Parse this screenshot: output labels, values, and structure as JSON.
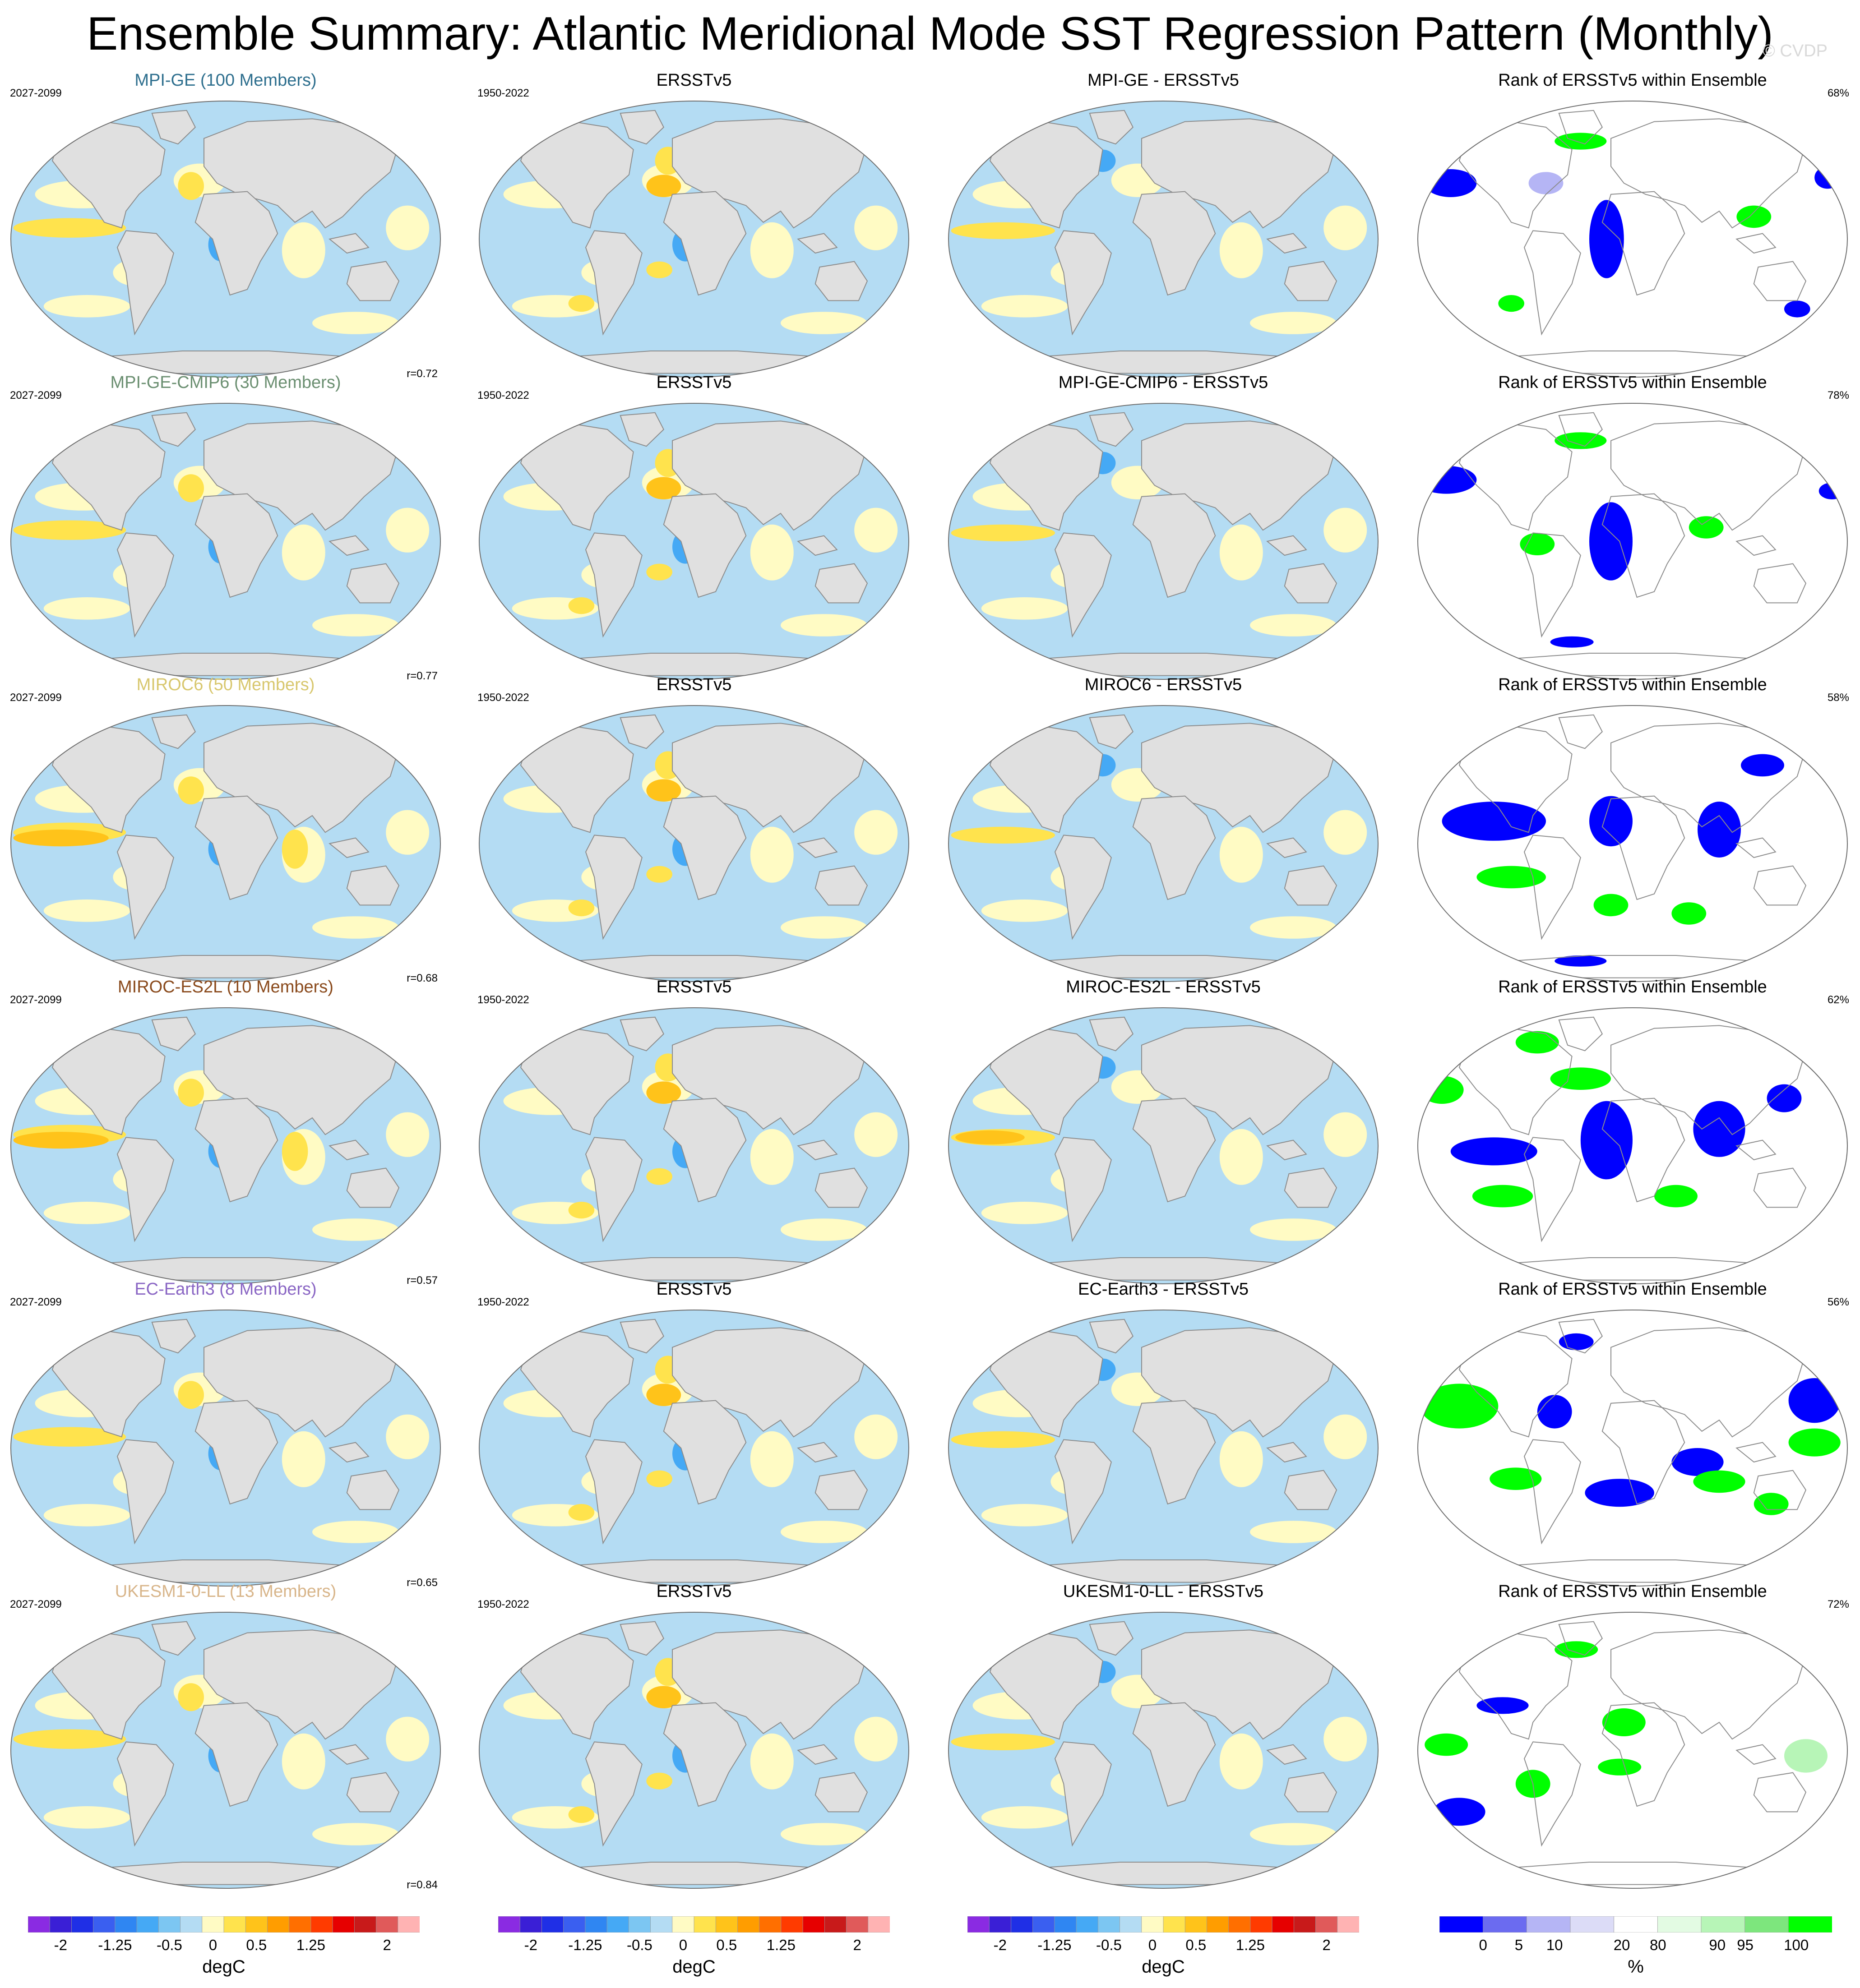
{
  "title": "Ensemble Summary: Atlantic Meridional Mode SST Regression Pattern (Monthly)",
  "watermark": "© CVDP",
  "column_titles": {
    "obs": "ERSSTv5",
    "rank": "Rank of ERSSTv5 within Ensemble"
  },
  "periods": {
    "model": "2027-2099",
    "obs": "1950-2022"
  },
  "rows": [
    {
      "model_label": "MPI-GE (100 Members)",
      "label_color": "#2e6f8e",
      "diff_title": "MPI-GE - ERSSTv5",
      "r": "r=0.72",
      "rank_pct": "68%"
    },
    {
      "model_label": "MPI-GE-CMIP6 (30 Members)",
      "label_color": "#6b8f71",
      "diff_title": "MPI-GE-CMIP6 - ERSSTv5",
      "r": "r=0.77",
      "rank_pct": "78%"
    },
    {
      "model_label": "MIROC6 (50 Members)",
      "label_color": "#d8c76e",
      "diff_title": "MIROC6 - ERSSTv5",
      "r": "r=0.68",
      "rank_pct": "58%"
    },
    {
      "model_label": "MIROC-ES2L (10 Members)",
      "label_color": "#8a4a1c",
      "diff_title": "MIROC-ES2L - ERSSTv5",
      "r": "r=0.57",
      "rank_pct": "62%"
    },
    {
      "model_label": "EC-Earth3 (8 Members)",
      "label_color": "#8a66c4",
      "diff_title": "EC-Earth3 - ERSSTv5",
      "r": "r=0.65",
      "rank_pct": "56%"
    },
    {
      "model_label": "UKESM1-0-LL (13 Members)",
      "label_color": "#d8b58a",
      "diff_title": "UKESM1-0-LL - ERSSTv5",
      "r": "r=0.84",
      "rank_pct": "72%"
    }
  ],
  "sst_colorbar": {
    "labels": [
      "-2",
      "-1.25",
      "-0.5",
      "0",
      "0.5",
      "1.25",
      "2"
    ],
    "unit": "degC",
    "colors": [
      "#8a2be2",
      "#3a1fd6",
      "#1f2fe6",
      "#3a5ff0",
      "#2f86f2",
      "#45a9f5",
      "#7cc6f2",
      "#b4dcf3",
      "#fffbc4",
      "#ffe34d",
      "#ffc31a",
      "#ff9d00",
      "#ff6f00",
      "#ff3b00",
      "#e60000",
      "#c81a1a",
      "#e05a5a",
      "#ffb3b3"
    ]
  },
  "rank_colorbar": {
    "labels": [
      "0",
      "5",
      "10",
      "20",
      "80",
      "90",
      "95",
      "100"
    ],
    "unit": "%",
    "colors": [
      "#0000ff",
      "#6b6bf0",
      "#b5b5f5",
      "#dcdcf7",
      "#ffffff",
      "#e3fbe3",
      "#b7f5b7",
      "#7de67d",
      "#00ff00"
    ]
  },
  "colors": {
    "land": "#e0e0e0",
    "ocean_neg": "#b4dcf3",
    "ocean_pos": "#fffbc4",
    "warm1": "#ffe34d",
    "warm2": "#ffc31a",
    "cool2": "#45a9f5",
    "rank_low": "#0000ff",
    "rank_high": "#00ff00"
  }
}
